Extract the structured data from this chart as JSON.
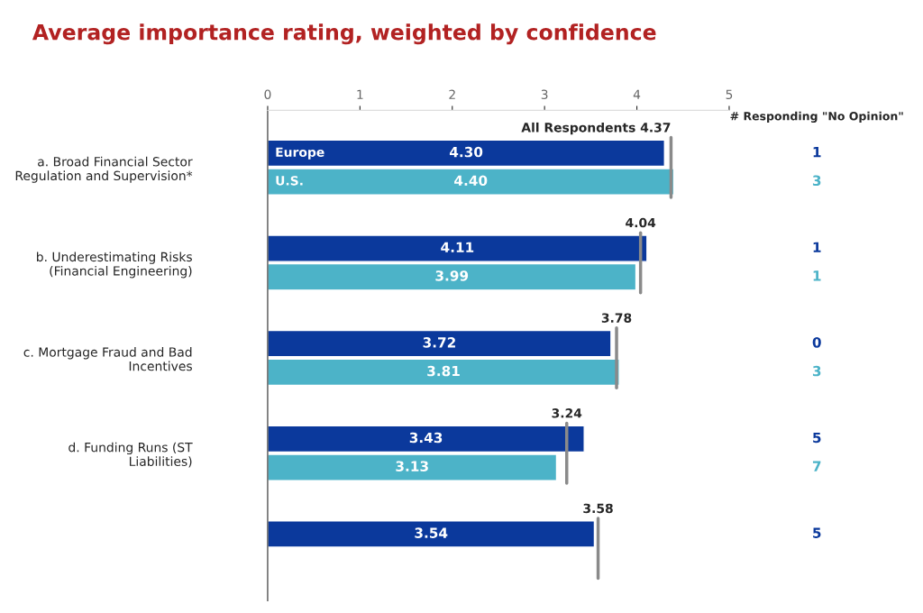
{
  "chart_data": {
    "type": "bar",
    "orientation": "horizontal",
    "title": "Average importance rating, weighted by confidence",
    "categories": [
      "a. Broad Financial Sector Regulation and Supervision*",
      "b. Underestimating Risks (Financial Engineering)",
      "c. Mortgage Fraud and Bad Incentives",
      "d. Funding Runs (ST Liabilities)",
      null
    ],
    "series": [
      {
        "name": "Europe",
        "color": "#0b399c",
        "values": [
          4.3,
          4.11,
          3.72,
          3.43,
          3.54
        ],
        "value_labels": [
          "4.30",
          "4.11",
          "3.72",
          "3.43",
          "3.54"
        ]
      },
      {
        "name": "U.S.",
        "color": "#4cb3c8",
        "values": [
          4.4,
          3.99,
          3.81,
          3.13,
          null
        ],
        "value_labels": [
          "4.40",
          "3.99",
          "3.81",
          "3.13",
          null
        ]
      }
    ],
    "ref_lines": [
      {
        "axis": "x",
        "value": 4.37,
        "label": "All Respondents 4.37",
        "color": "#8a8a8a"
      },
      {
        "axis": "x",
        "value": 4.04,
        "label": "4.04",
        "color": "#8a8a8a"
      },
      {
        "axis": "x",
        "value": 3.78,
        "label": "3.78",
        "color": "#8a8a8a"
      },
      {
        "axis": "x",
        "value": 3.24,
        "label": "3.24",
        "color": "#8a8a8a"
      },
      {
        "axis": "x",
        "value": 3.58,
        "label": "3.58",
        "color": "#8a8a8a"
      }
    ],
    "annotations": [
      "# Responding \"No Opinion\"",
      "1",
      "3",
      "1",
      "1",
      "0",
      "3",
      "5",
      "7",
      "5"
    ],
    "xlim": [
      0,
      5
    ],
    "xticks": [
      0,
      1,
      2,
      3,
      4,
      5
    ],
    "grid": false
  }
}
